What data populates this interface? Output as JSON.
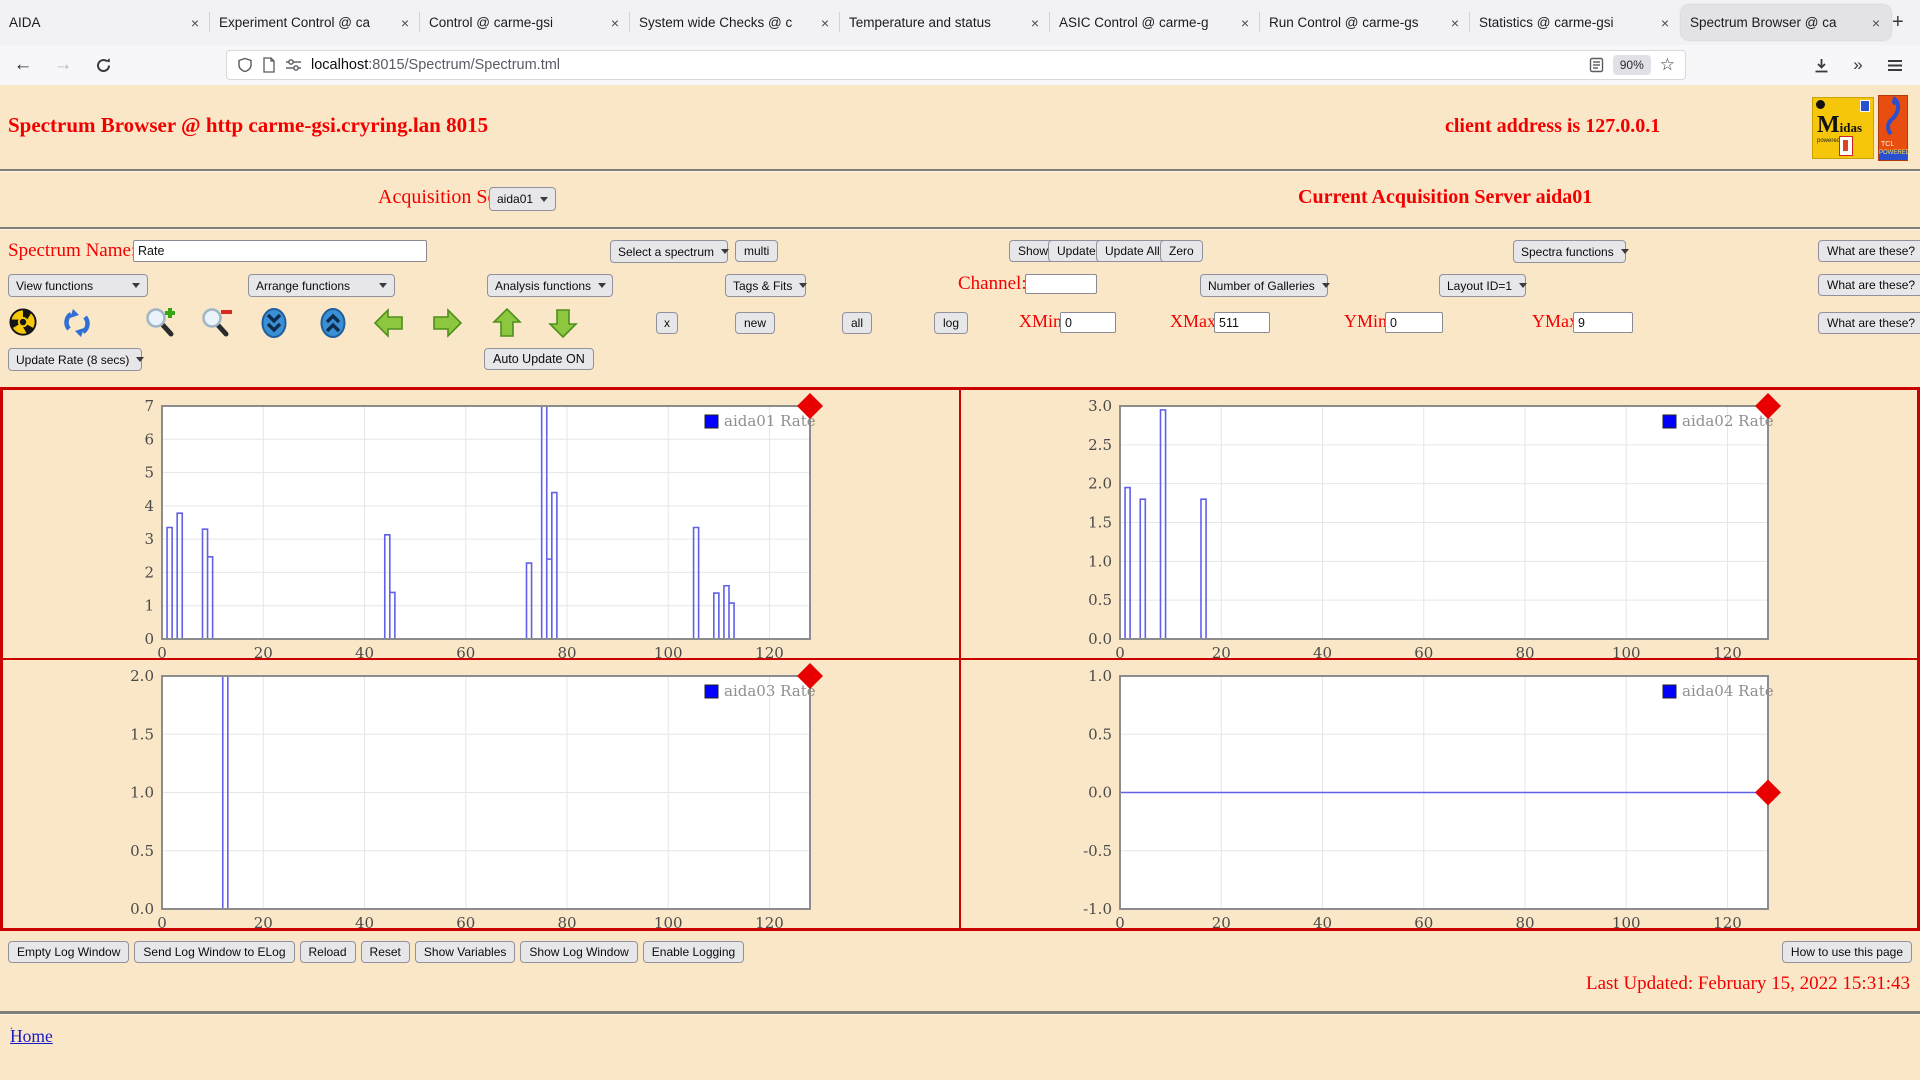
{
  "colors": {
    "page_bg": "#fae7c8",
    "accent_red": "#f20000",
    "chart_line": "#6060e8",
    "legend_blue": "#0000ff",
    "panel_border": "#cc0000",
    "diamond": "#e80000"
  },
  "browser": {
    "tabs": [
      {
        "title": "AIDA",
        "active": false
      },
      {
        "title": "Experiment Control @ ca",
        "active": false
      },
      {
        "title": "Control @ carme-gsi",
        "active": false
      },
      {
        "title": "System wide Checks @ c",
        "active": false
      },
      {
        "title": "Temperature and status",
        "active": false
      },
      {
        "title": "ASIC Control @ carme-g",
        "active": false
      },
      {
        "title": "Run Control @ carme-gs",
        "active": false
      },
      {
        "title": "Statistics @ carme-gsi",
        "active": false
      },
      {
        "title": "Spectrum Browser @ ca",
        "active": true
      }
    ],
    "url_host": "localhost",
    "url_rest": ":8015/Spectrum/Spectrum.tml",
    "zoom_badge": "90%"
  },
  "header": {
    "title": "Spectrum Browser @ http carme-gsi.cryring.lan 8015",
    "client": "client address is 127.0.0.1",
    "logo_midas": "Midas",
    "logo_midas_sub": "powered by",
    "logo_tcl_top": "TCL",
    "logo_tcl_bottom": "POWERED"
  },
  "acquisition": {
    "label": "Acquisition Servers",
    "selected": "aida01",
    "current": "Current Acquisition Server aida01"
  },
  "row1": {
    "spectrum_name_label": "Spectrum Name:",
    "spectrum_name_value": "Rate",
    "select_spectrum": "Select a spectrum",
    "multi": "multi",
    "show": "Show",
    "update": "Update",
    "update_all": "Update All",
    "zero": "Zero",
    "spectra_functions": "Spectra functions",
    "what_are_these": "What are these?"
  },
  "row2": {
    "view_functions": "View functions",
    "arrange_functions": "Arrange functions",
    "analysis_functions": "Analysis functions",
    "tags_fits": "Tags & Fits",
    "channel_label": "Channel:",
    "channel_value": "",
    "number_of_galleries": "Number of Galleries",
    "layout_id": "Layout ID=1",
    "what_are_these": "What are these?"
  },
  "row3": {
    "x_button": "x",
    "new_button": "new",
    "all_button": "all",
    "log_button": "log",
    "xmin_label": "XMin",
    "xmin_value": "0",
    "xmax_label": "XMax",
    "xmax_value": "511",
    "ymin_label": "YMin",
    "ymin_value": "0",
    "ymax_label": "YMax",
    "ymax_value": "9",
    "what_are_these": "What are these?"
  },
  "row4": {
    "update_rate": "Update Rate (8 secs)",
    "auto_update": "Auto Update ON"
  },
  "toolbar_icons": [
    "radiation-icon",
    "refresh-icon",
    "zoom-in-icon",
    "zoom-out-icon",
    "page-down-icon",
    "page-up-icon",
    "arrow-left-icon",
    "arrow-right-icon",
    "arrow-up-icon",
    "arrow-down-icon"
  ],
  "footer": {
    "buttons": [
      "Empty Log Window",
      "Send Log Window to ELog",
      "Reload",
      "Reset",
      "Show Variables",
      "Show Log Window",
      "Enable Logging"
    ],
    "how_to": "How to use this page",
    "last_updated": "Last Updated: February 15, 2022 15:31:43",
    "dot": ".",
    "home": "Home"
  },
  "chart_data": [
    {
      "type": "step",
      "name": "aida01 Rate",
      "xlim": [
        0,
        128
      ],
      "xticks": [
        0,
        20,
        40,
        60,
        80,
        100,
        120
      ],
      "ylim": [
        0,
        7
      ],
      "yticks": [
        0,
        1,
        2,
        3,
        4,
        5,
        6,
        7
      ],
      "ydecimals": 0,
      "baseline": 0,
      "diamond": "top-right",
      "pulses": [
        [
          1,
          2,
          3.35
        ],
        [
          3,
          4,
          3.78
        ],
        [
          8,
          9,
          3.3
        ],
        [
          9,
          10,
          2.47
        ],
        [
          44,
          45,
          3.13
        ],
        [
          45,
          46,
          1.4
        ],
        [
          72,
          73,
          2.28
        ],
        [
          75,
          76,
          7
        ],
        [
          76,
          77,
          2.4
        ],
        [
          77,
          78,
          4.4
        ],
        [
          105,
          106,
          3.35
        ],
        [
          109,
          110,
          1.38
        ],
        [
          111,
          112,
          1.6
        ],
        [
          112,
          113,
          1.08
        ]
      ]
    },
    {
      "type": "step",
      "name": "aida02 Rate",
      "xlim": [
        0,
        128
      ],
      "xticks": [
        0,
        20,
        40,
        60,
        80,
        100,
        120
      ],
      "ylim": [
        0,
        3
      ],
      "yticks": [
        0,
        0.5,
        1,
        1.5,
        2,
        2.5,
        3
      ],
      "ydecimals": 1,
      "baseline": 0,
      "diamond": "top-right",
      "pulses": [
        [
          1,
          2,
          1.95
        ],
        [
          4,
          5,
          1.8
        ],
        [
          8,
          9,
          2.95
        ],
        [
          16,
          17,
          1.8
        ]
      ]
    },
    {
      "type": "step",
      "name": "aida03 Rate",
      "xlim": [
        0,
        128
      ],
      "xticks": [
        0,
        20,
        40,
        60,
        80,
        100,
        120
      ],
      "ylim": [
        0,
        2
      ],
      "yticks": [
        0,
        0.5,
        1,
        1.5,
        2
      ],
      "ydecimals": 1,
      "baseline": 0,
      "diamond": "top-right",
      "pulses": [
        [
          12,
          13,
          2
        ]
      ]
    },
    {
      "type": "step",
      "name": "aida04 Rate",
      "xlim": [
        0,
        128
      ],
      "xticks": [
        0,
        20,
        40,
        60,
        80,
        100,
        120
      ],
      "ylim": [
        -1,
        1
      ],
      "yticks": [
        -1,
        -0.5,
        0,
        0.5,
        1
      ],
      "ydecimals": 1,
      "baseline": 0,
      "diamond": "right-baseline",
      "pulses": []
    }
  ]
}
